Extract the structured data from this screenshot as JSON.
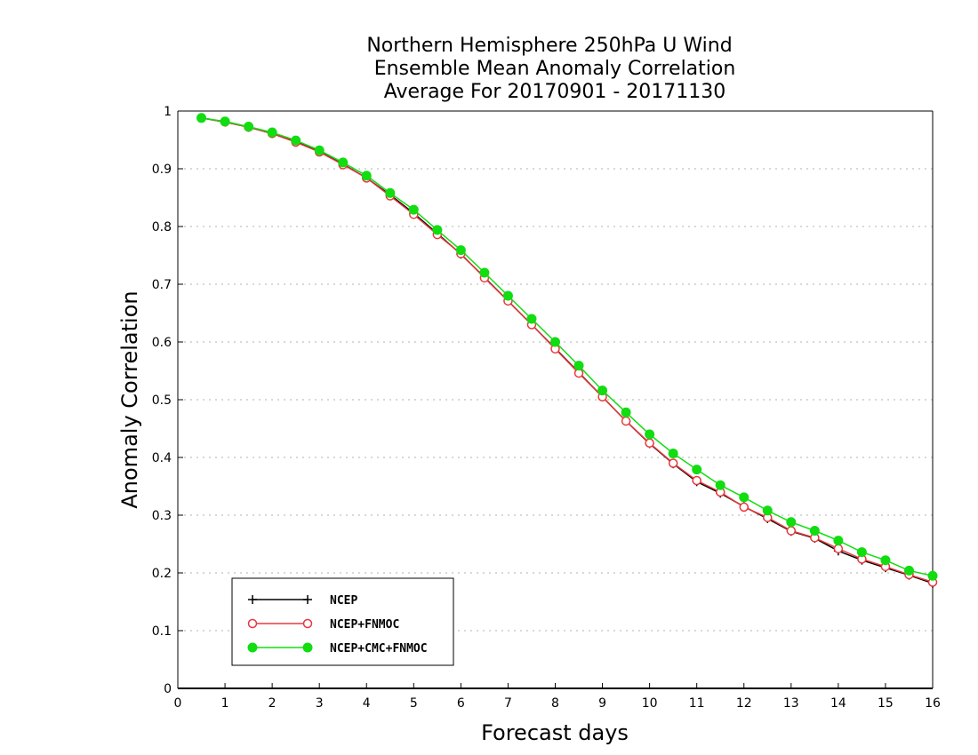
{
  "chart_data": {
    "type": "line",
    "title": [
      "Northern Hemisphere 250hPa U Wind",
      "Ensemble Mean Anomaly Correlation",
      "Average For 20170901 - 20171130"
    ],
    "xlabel": "Forecast days",
    "ylabel": "Anomaly Correlation",
    "xlim": [
      0,
      16
    ],
    "ylim": [
      0,
      1
    ],
    "xticks": [
      0,
      1,
      2,
      3,
      4,
      5,
      6,
      7,
      8,
      9,
      10,
      11,
      12,
      13,
      14,
      15,
      16
    ],
    "yticks": [
      0,
      0.1,
      0.2,
      0.3,
      0.4,
      0.5,
      0.6,
      0.7,
      0.8,
      0.9,
      1
    ],
    "ytick_labels": [
      "0",
      "0.1",
      "0.2",
      "0.3",
      "0.4",
      "0.5",
      "0.6",
      "0.7",
      "0.8",
      "0.9",
      "1"
    ],
    "grid": true,
    "legend_position": "bottom-left",
    "x": [
      0.5,
      1,
      1.5,
      2,
      2.5,
      3,
      3.5,
      4,
      4.5,
      5,
      5.5,
      6,
      6.5,
      7,
      7.5,
      8,
      8.5,
      9,
      9.5,
      10,
      10.5,
      11,
      11.5,
      12,
      12.5,
      13,
      13.5,
      14,
      14.5,
      15,
      15.5,
      16
    ],
    "series": [
      {
        "name": "NCEP",
        "color": "#000000",
        "marker": "plus",
        "values": [
          0.988,
          0.981,
          0.972,
          0.961,
          0.947,
          0.93,
          0.908,
          0.884,
          0.855,
          0.823,
          0.788,
          0.752,
          0.712,
          0.671,
          0.63,
          0.589,
          0.547,
          0.505,
          0.463,
          0.424,
          0.389,
          0.358,
          0.338,
          0.315,
          0.294,
          0.272,
          0.26,
          0.238,
          0.222,
          0.209,
          0.196,
          0.182
        ]
      },
      {
        "name": "NCEP+FNMOC",
        "color": "#e8383d",
        "marker": "open-circle",
        "values": [
          0.988,
          0.981,
          0.972,
          0.961,
          0.946,
          0.929,
          0.907,
          0.884,
          0.853,
          0.821,
          0.786,
          0.753,
          0.711,
          0.671,
          0.63,
          0.588,
          0.546,
          0.505,
          0.463,
          0.425,
          0.39,
          0.36,
          0.34,
          0.314,
          0.296,
          0.273,
          0.261,
          0.242,
          0.224,
          0.211,
          0.197,
          0.184
        ]
      },
      {
        "name": "NCEP+CMC+FNMOC",
        "color": "#11dd11",
        "marker": "filled-circle",
        "values": [
          0.988,
          0.982,
          0.973,
          0.963,
          0.949,
          0.932,
          0.911,
          0.888,
          0.858,
          0.829,
          0.794,
          0.759,
          0.72,
          0.68,
          0.64,
          0.6,
          0.559,
          0.516,
          0.478,
          0.44,
          0.407,
          0.379,
          0.352,
          0.331,
          0.308,
          0.288,
          0.273,
          0.256,
          0.236,
          0.222,
          0.204,
          0.195
        ]
      }
    ]
  }
}
